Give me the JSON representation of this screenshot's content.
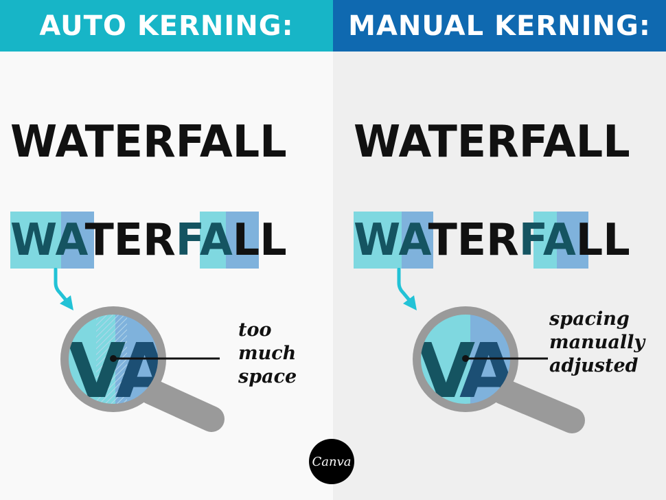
{
  "left": {
    "header": "AUTO KERNING:",
    "word": "WATERFALL",
    "annotated_word": {
      "pair1": "WA",
      "middle": "TER",
      "pair2": "FA",
      "end": "LL"
    },
    "magnified": {
      "letter1": "V",
      "letter2": "A"
    },
    "note_lines": [
      "too",
      "much",
      "space"
    ]
  },
  "right": {
    "header": "MANUAL KERNING:",
    "word": "WATERFALL",
    "annotated_word": {
      "pair1": "WA",
      "middle": "TER",
      "pair2": "FA",
      "end": "LL"
    },
    "magnified": {
      "letter1": "V",
      "letter2": "A"
    },
    "note_lines": [
      "spacing",
      "manually",
      "adjusted"
    ]
  },
  "logo": {
    "text": "Canva"
  },
  "colors": {
    "auto_header": "#17b5c7",
    "manual_header": "#0f69b0",
    "teal_highlight": "#7fd8e0",
    "blue_highlight": "#7fb2dc",
    "arrow": "#22c2d6",
    "lens_ring": "#9a9a9a"
  }
}
